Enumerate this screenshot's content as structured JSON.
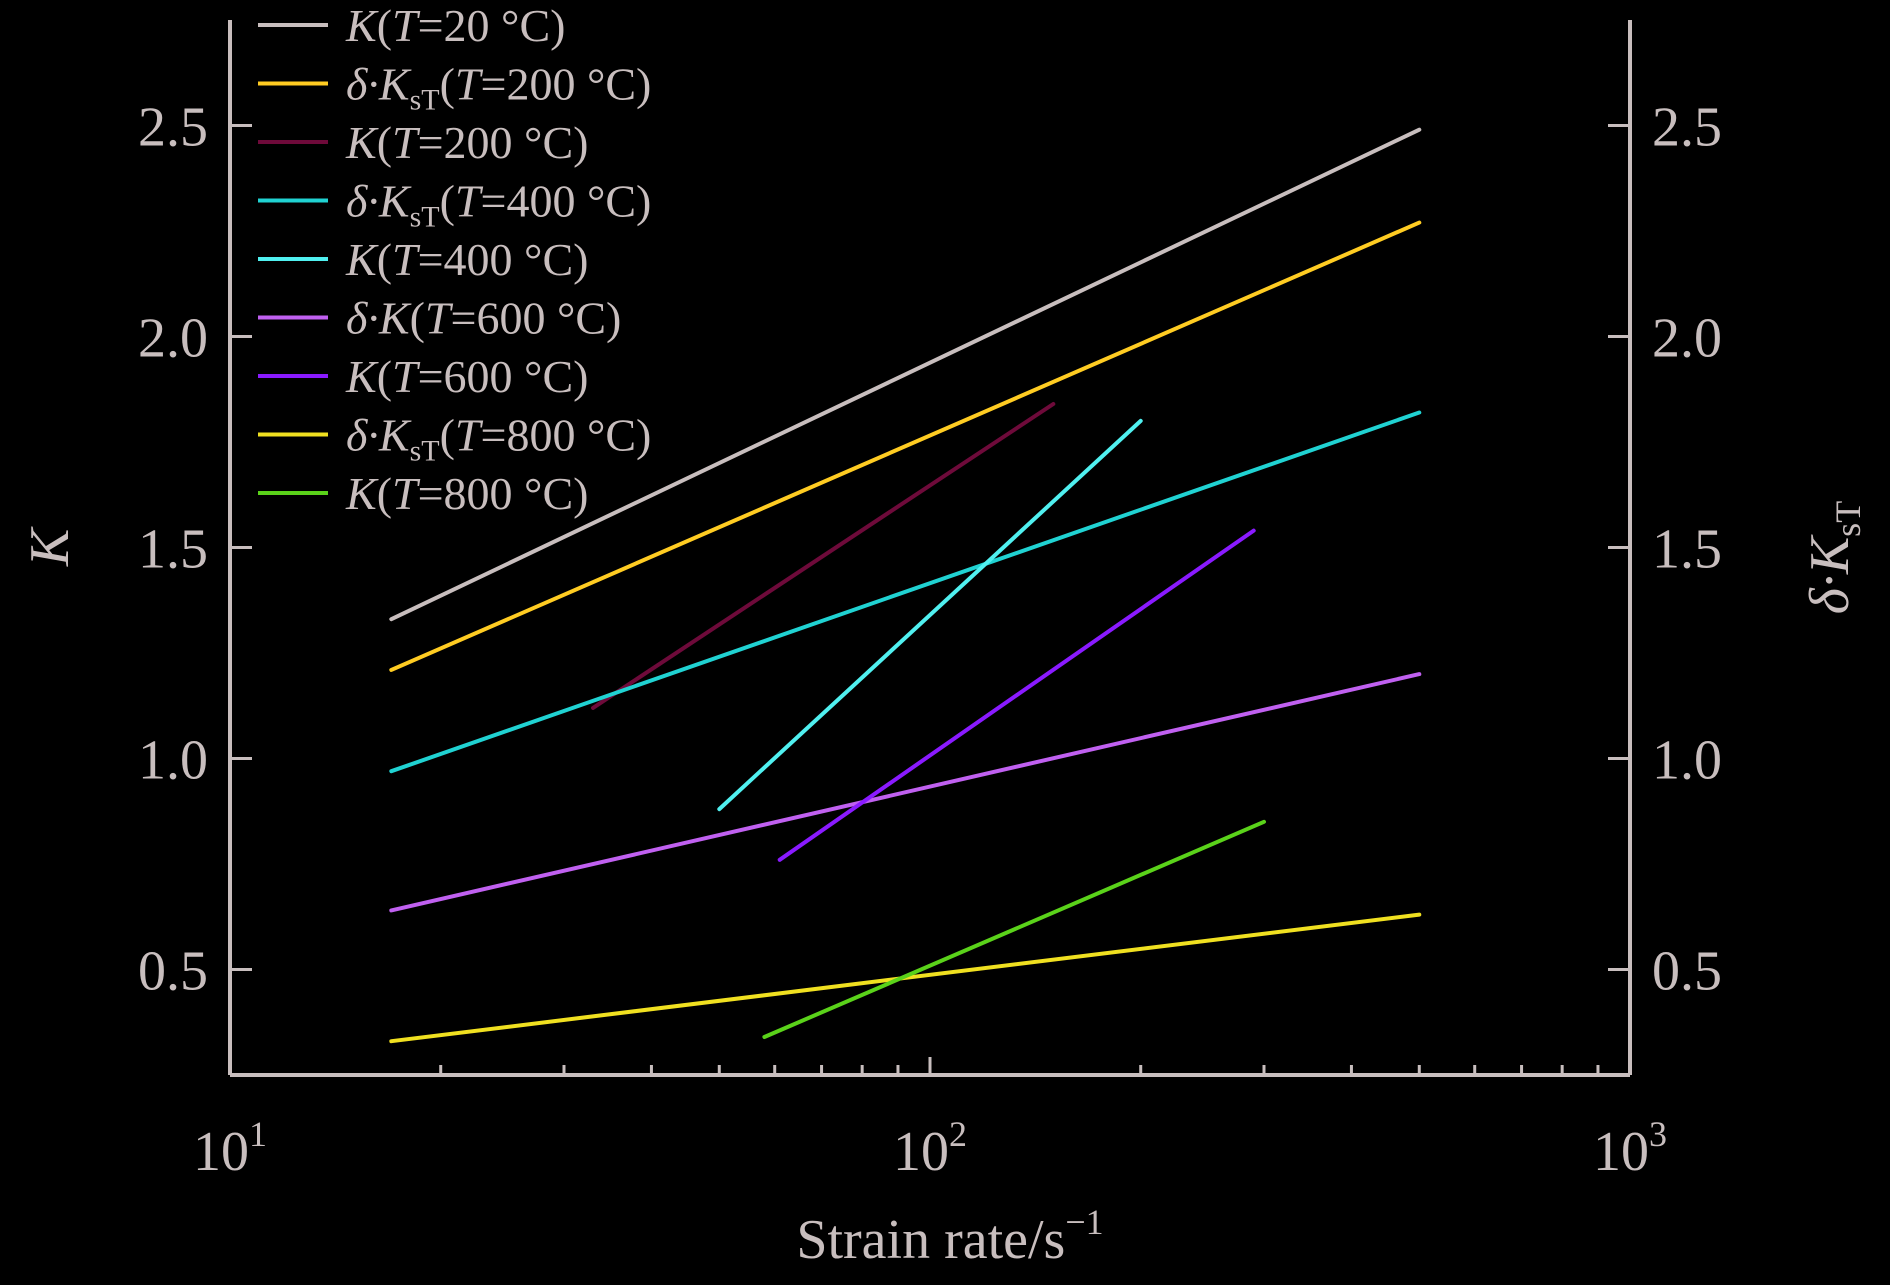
{
  "chart_data": {
    "type": "line",
    "xscale": "log",
    "xlim": [
      10,
      1000
    ],
    "ylim": [
      0.25,
      2.75
    ],
    "y2lim": [
      0.25,
      2.75
    ],
    "x_ticks": [
      {
        "value": 10,
        "base": "10",
        "exp": "1"
      },
      {
        "value": 100,
        "base": "10",
        "exp": "2"
      },
      {
        "value": 1000,
        "base": "10",
        "exp": "3"
      }
    ],
    "y_ticks": [
      "0.5",
      "1.0",
      "1.5",
      "2.0",
      "2.5"
    ],
    "xlabel": {
      "text": "Strain rate/s",
      "sup": "−1"
    },
    "ylabel": "K",
    "y2label": {
      "prefix": "δ·",
      "main": "K",
      "sub": "sT"
    },
    "axis_color": "#c8bebe",
    "background": "#000000",
    "legend_position": "top-left",
    "series": [
      {
        "legend": {
          "pre": "",
          "main": "K",
          "sub": "",
          "mid": "(",
          "T": "T",
          "rest": "=20 °C)"
        },
        "color": "#c8bebe",
        "x": [
          17,
          500
        ],
        "y": [
          1.33,
          2.49
        ]
      },
      {
        "legend": {
          "pre": "δ·",
          "main": "K",
          "sub": "sT",
          "mid": "(",
          "T": "T",
          "rest": "=200 °C)"
        },
        "color": "#ffcc22",
        "x": [
          17,
          500
        ],
        "y": [
          1.21,
          2.27
        ]
      },
      {
        "legend": {
          "pre": "",
          "main": "K",
          "sub": "",
          "mid": "(",
          "T": "T",
          "rest": "=200 °C)"
        },
        "color": "#6e0a3a",
        "x": [
          33,
          150
        ],
        "y": [
          1.12,
          1.84
        ]
      },
      {
        "legend": {
          "pre": "δ·",
          "main": "K",
          "sub": "sT",
          "mid": "(",
          "T": "T",
          "rest": "=400 °C)"
        },
        "color": "#20d2d2",
        "x": [
          17,
          500
        ],
        "y": [
          0.97,
          1.82
        ]
      },
      {
        "legend": {
          "pre": "",
          "main": "K",
          "sub": "",
          "mid": "(",
          "T": "T",
          "rest": "=400 °C)"
        },
        "color": "#50f0f0",
        "x": [
          50,
          200
        ],
        "y": [
          0.88,
          1.8
        ]
      },
      {
        "legend": {
          "pre": "δ·",
          "main": "K",
          "sub": "",
          "mid": "(",
          "T": "T",
          "rest": "=600 °C)"
        },
        "color": "#c060f0",
        "x": [
          17,
          500
        ],
        "y": [
          0.64,
          1.2
        ]
      },
      {
        "legend": {
          "pre": "",
          "main": "K",
          "sub": "",
          "mid": "(",
          "T": "T",
          "rest": "=600 °C)"
        },
        "color": "#8a1aff",
        "x": [
          61,
          290
        ],
        "y": [
          0.76,
          1.54
        ]
      },
      {
        "legend": {
          "pre": "δ·",
          "main": "K",
          "sub": "sT",
          "mid": "(",
          "T": "T",
          "rest": "=800 °C)"
        },
        "color": "#f0e020",
        "x": [
          17,
          500
        ],
        "y": [
          0.33,
          0.63
        ]
      },
      {
        "legend": {
          "pre": "",
          "main": "K",
          "sub": "",
          "mid": "(",
          "T": "T",
          "rest": "=800 °C)"
        },
        "color": "#5ad21a",
        "x": [
          58,
          300
        ],
        "y": [
          0.34,
          0.85
        ]
      }
    ]
  }
}
